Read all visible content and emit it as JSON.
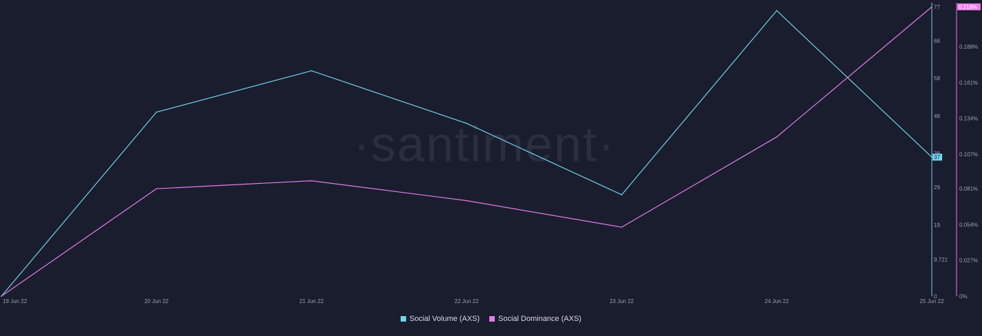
{
  "watermark": "·santiment·",
  "colors": {
    "background": "#1a1d2e",
    "volume": "#6fd6ec",
    "dominance": "#e77ce8",
    "tick_text": "#9aa0b4"
  },
  "chart_data": {
    "type": "line",
    "categories": [
      "19 Jun 22",
      "20 Jun 22",
      "21 Jun 22",
      "22 Jun 22",
      "23 Jun 22",
      "24 Jun 22",
      "25 Jun 22"
    ],
    "series": [
      {
        "name": "Social Volume (AXS)",
        "axis": "right-inner",
        "values": [
          0,
          49,
          60,
          46,
          27,
          76,
          37
        ],
        "last_value_label": "37"
      },
      {
        "name": "Social Dominance (AXS)",
        "axis": "right-outer",
        "values": [
          0,
          0.081,
          0.087,
          0.072,
          0.052,
          0.12,
          0.218
        ],
        "last_value_label": "0.218%"
      }
    ],
    "y_volume": {
      "range": [
        0,
        77
      ],
      "ticks": [
        0,
        9.721,
        19,
        29,
        38,
        48,
        58,
        68,
        77
      ],
      "tick_labels": [
        "0",
        "9.721",
        "19",
        "29",
        "38",
        "48",
        "58",
        "68",
        "77"
      ]
    },
    "y_dominance": {
      "range": [
        0,
        0.218
      ],
      "ticks": [
        0,
        0.027,
        0.054,
        0.081,
        0.107,
        0.134,
        0.161,
        0.188
      ],
      "tick_labels": [
        "0%",
        "0.027%",
        "0.054%",
        "0.081%",
        "0.107%",
        "0.134%",
        "0.161%",
        "0.188%"
      ]
    },
    "grid": false,
    "legend_position": "bottom-center"
  },
  "legend": {
    "volume_label": "Social Volume (AXS)",
    "dominance_label": "Social Dominance (AXS)"
  }
}
